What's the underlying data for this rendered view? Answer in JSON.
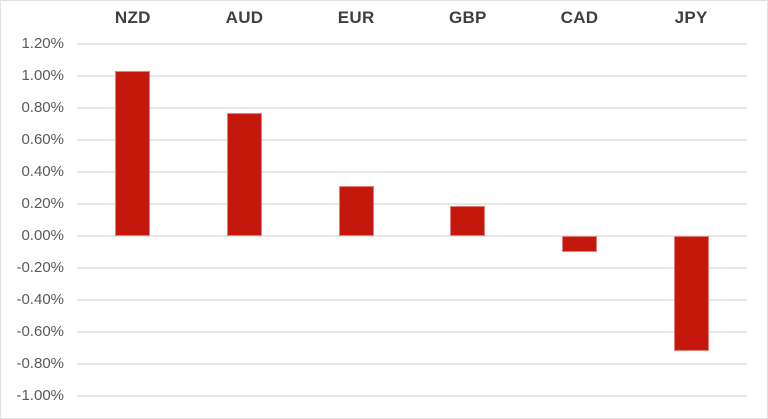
{
  "chart_data": {
    "type": "bar",
    "title": "",
    "xlabel": "",
    "ylabel": "",
    "categories": [
      "NZD",
      "AUD",
      "EUR",
      "GBP",
      "CAD",
      "JPY"
    ],
    "values": [
      1.03,
      0.77,
      0.31,
      0.19,
      -0.1,
      -0.72
    ],
    "value_unit": "%",
    "ylim": [
      -1.0,
      1.2
    ],
    "y_tick_step": 0.2,
    "y_tick_labels": [
      "1.20%",
      "1.00%",
      "0.80%",
      "0.60%",
      "0.40%",
      "0.20%",
      "0.00%",
      "-0.20%",
      "-0.40%",
      "-0.60%",
      "-0.80%",
      "-1.00%"
    ],
    "grid": true,
    "legend": false,
    "category_labels_position": "top",
    "bar_color": "#c5180c",
    "gridline_color": "#e7e7e7",
    "axis_label_color": "#595959",
    "category_label_color": "#3f3f3f",
    "background_color": "#ffffff"
  }
}
